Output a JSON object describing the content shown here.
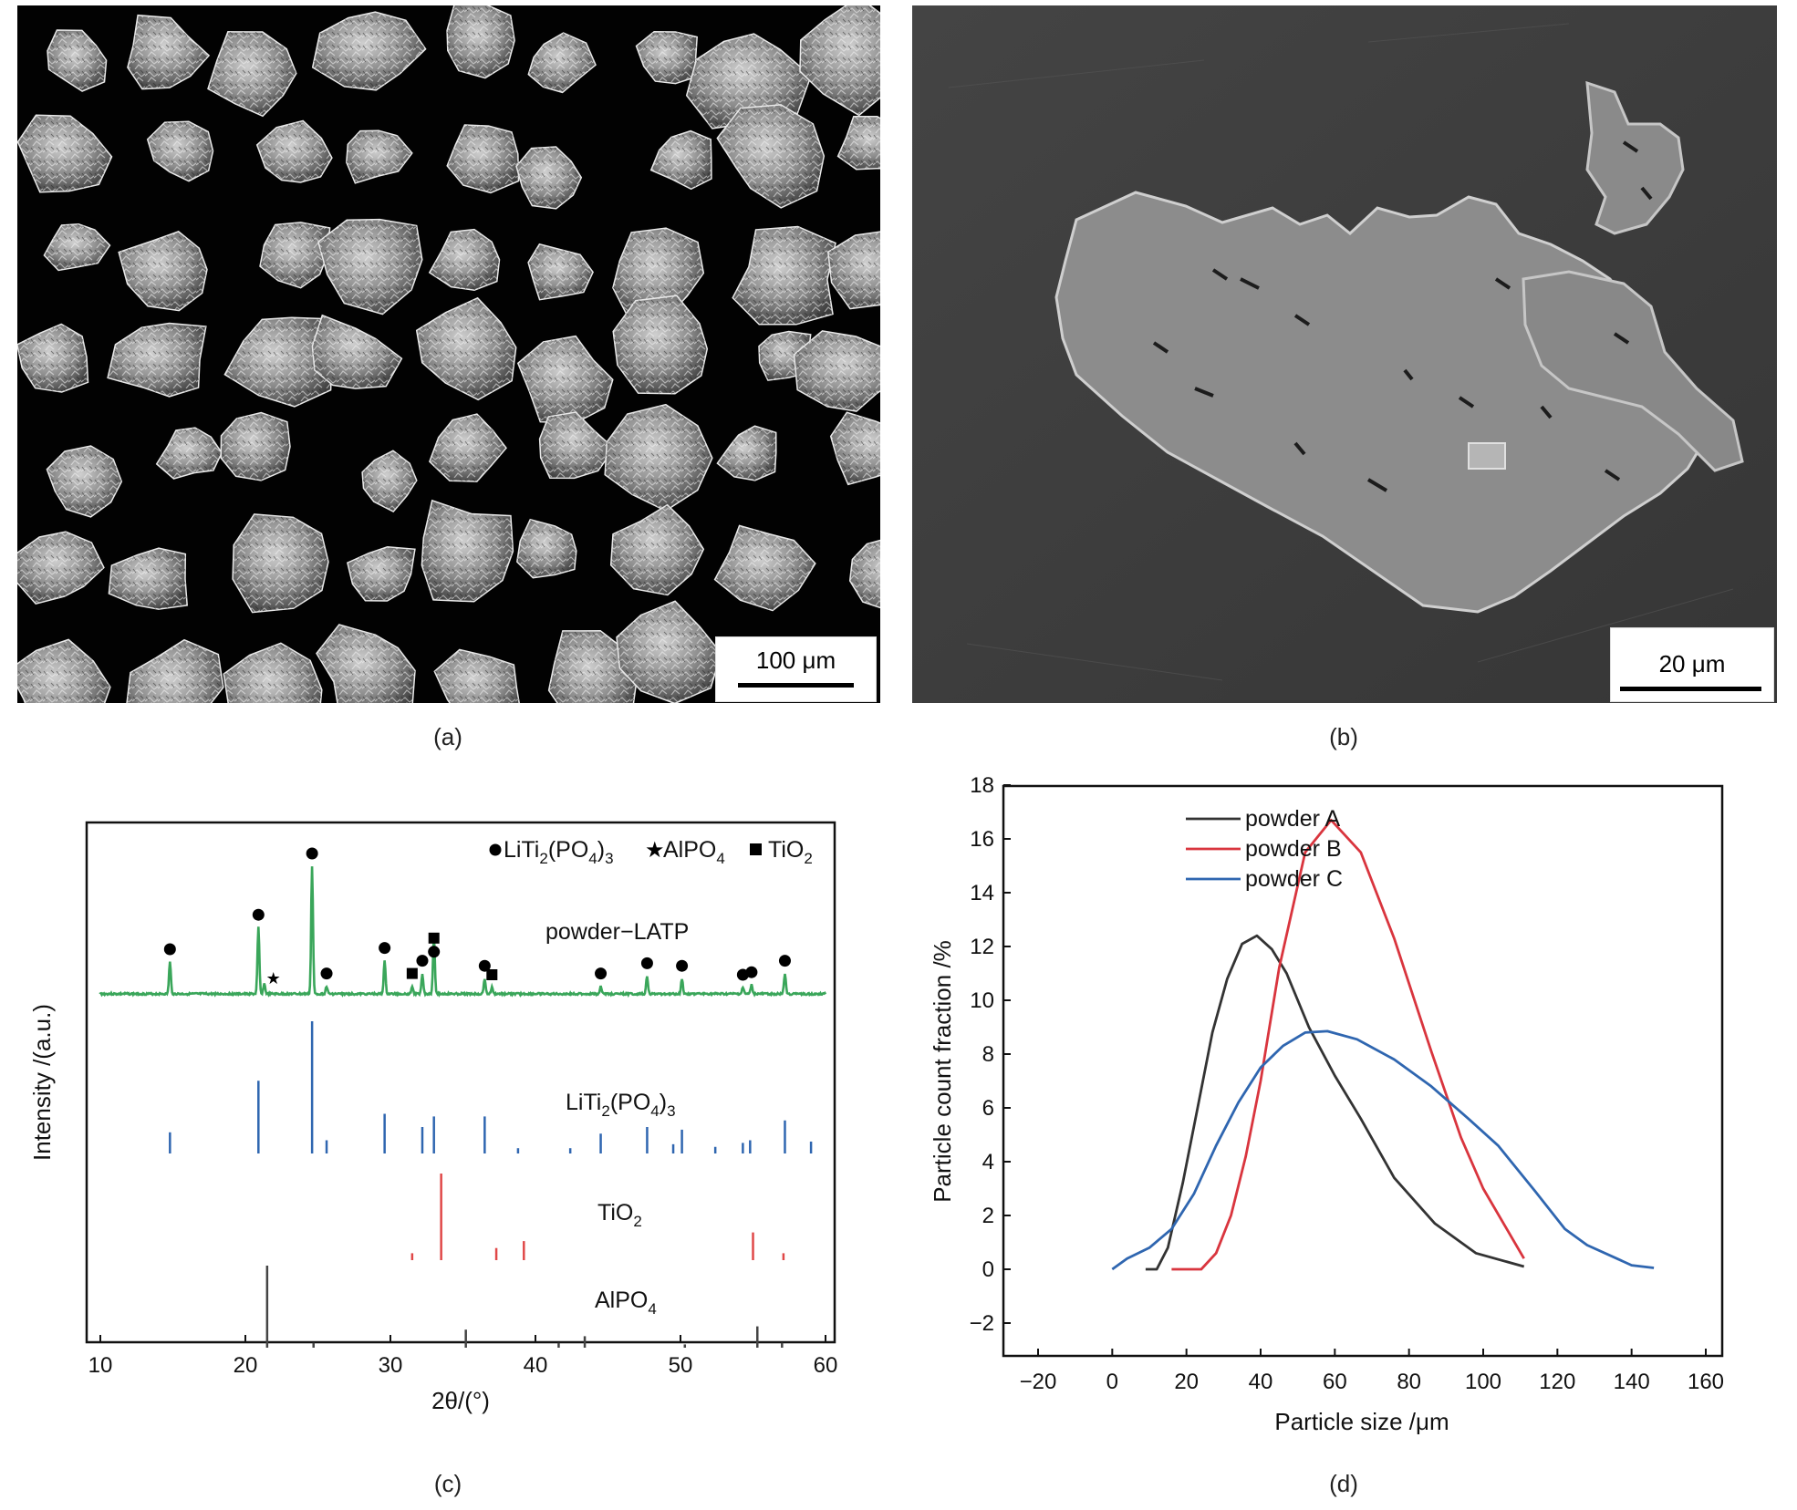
{
  "panels": {
    "a": {
      "caption": "(a)",
      "scale_label": "100 μm"
    },
    "b": {
      "caption": "(b)",
      "scale_label": "20 μm"
    },
    "c": {
      "caption": "(c)"
    },
    "d": {
      "caption": "(d)"
    }
  },
  "chart_data": [
    {
      "type": "line",
      "panel": "c",
      "xlabel": "2θ/(°)",
      "ylabel": "Intensity /(a.u.)",
      "xlim": [
        10,
        60
      ],
      "xticks": [
        10,
        20,
        30,
        40,
        50,
        60
      ],
      "legend": {
        "position": "top-right",
        "entries": [
          {
            "symbol": "circle",
            "label_main": "LiTi",
            "sub1": "2",
            "label_mid": "(PO",
            "sub2": "4",
            "label_end": ")",
            "sub3": "3"
          },
          {
            "symbol": "star",
            "label_main": "AlPO",
            "sub1": "4"
          },
          {
            "symbol": "square",
            "label_main": "TiO",
            "sub1": "2"
          }
        ]
      },
      "series": [
        {
          "name": "powder−LATP",
          "color": "#3aa65a",
          "peaks": [
            {
              "x": 14.8,
              "h": 0.25,
              "marker": "circle"
            },
            {
              "x": 20.9,
              "h": 0.52,
              "marker": "circle"
            },
            {
              "x": 21.3,
              "h": 0.08,
              "marker": "star"
            },
            {
              "x": 24.6,
              "h": 1.0,
              "marker": "circle"
            },
            {
              "x": 25.6,
              "h": 0.06,
              "marker": "circle"
            },
            {
              "x": 29.6,
              "h": 0.26,
              "marker": "circle"
            },
            {
              "x": 31.5,
              "h": 0.06,
              "marker": "square"
            },
            {
              "x": 32.2,
              "h": 0.16,
              "marker": "circle"
            },
            {
              "x": 33.0,
              "h": 0.23,
              "marker": "circle"
            },
            {
              "x": 33.0,
              "h": 0.23,
              "marker": "square"
            },
            {
              "x": 36.5,
              "h": 0.12,
              "marker": "circle"
            },
            {
              "x": 37.0,
              "h": 0.05,
              "marker": "square"
            },
            {
              "x": 44.5,
              "h": 0.06,
              "marker": "circle"
            },
            {
              "x": 47.7,
              "h": 0.14,
              "marker": "circle"
            },
            {
              "x": 50.1,
              "h": 0.12,
              "marker": "circle"
            },
            {
              "x": 54.3,
              "h": 0.05,
              "marker": "circle"
            },
            {
              "x": 54.9,
              "h": 0.07,
              "marker": "circle"
            },
            {
              "x": 57.2,
              "h": 0.16,
              "marker": "circle"
            }
          ]
        },
        {
          "name_main": "LiTi",
          "sub1": "2",
          "name_mid": "(PO",
          "sub2": "4",
          "name_end": ")",
          "sub3": "3",
          "color": "#2f66b0",
          "sticks": [
            {
              "x": 14.8,
              "h": 0.16
            },
            {
              "x": 20.9,
              "h": 0.55
            },
            {
              "x": 24.6,
              "h": 1.0
            },
            {
              "x": 25.6,
              "h": 0.1
            },
            {
              "x": 29.6,
              "h": 0.3
            },
            {
              "x": 32.2,
              "h": 0.2
            },
            {
              "x": 33.0,
              "h": 0.28
            },
            {
              "x": 36.5,
              "h": 0.28
            },
            {
              "x": 38.8,
              "h": 0.04
            },
            {
              "x": 42.4,
              "h": 0.04
            },
            {
              "x": 44.5,
              "h": 0.15
            },
            {
              "x": 47.7,
              "h": 0.2
            },
            {
              "x": 49.5,
              "h": 0.07
            },
            {
              "x": 50.1,
              "h": 0.18
            },
            {
              "x": 52.4,
              "h": 0.05
            },
            {
              "x": 54.3,
              "h": 0.08
            },
            {
              "x": 54.8,
              "h": 0.1
            },
            {
              "x": 57.2,
              "h": 0.25
            },
            {
              "x": 59.0,
              "h": 0.09
            }
          ]
        },
        {
          "name_main": "TiO",
          "sub1": "2",
          "color": "#e04848",
          "sticks": [
            {
              "x": 31.5,
              "h": 0.08
            },
            {
              "x": 33.5,
              "h": 1.0
            },
            {
              "x": 37.3,
              "h": 0.14
            },
            {
              "x": 39.2,
              "h": 0.22
            },
            {
              "x": 55.0,
              "h": 0.32
            },
            {
              "x": 57.1,
              "h": 0.08
            }
          ]
        },
        {
          "name_main": "AlPO",
          "sub1": "4",
          "color": "#444444",
          "sticks": [
            {
              "x": 21.5,
              "h": 1.0
            },
            {
              "x": 24.7,
              "h": 0.06
            },
            {
              "x": 35.2,
              "h": 0.22
            },
            {
              "x": 41.6,
              "h": 0.06
            },
            {
              "x": 43.4,
              "h": 0.14
            },
            {
              "x": 50.3,
              "h": 0.04
            },
            {
              "x": 55.3,
              "h": 0.26
            },
            {
              "x": 57.0,
              "h": 0.06
            }
          ]
        }
      ]
    },
    {
      "type": "line",
      "panel": "d",
      "xlabel": "Particle size /μm",
      "ylabel": "Particle count fraction /%",
      "xlim": [
        -20,
        160
      ],
      "ylim": [
        -2,
        19
      ],
      "xticks": [
        -20,
        0,
        20,
        40,
        60,
        80,
        100,
        120,
        140,
        160
      ],
      "yticks": [
        -2,
        0,
        2,
        4,
        6,
        8,
        10,
        12,
        14,
        16,
        18
      ],
      "legend": "top-right",
      "series": [
        {
          "name": "powder A",
          "color": "#333333",
          "points": [
            [
              9,
              0
            ],
            [
              12,
              0
            ],
            [
              15,
              0.8
            ],
            [
              19,
              3.2
            ],
            [
              23,
              6.0
            ],
            [
              27,
              8.8
            ],
            [
              31,
              10.8
            ],
            [
              35,
              12.1
            ],
            [
              39,
              12.4
            ],
            [
              43,
              11.9
            ],
            [
              47,
              11.0
            ],
            [
              53,
              9.0
            ],
            [
              60,
              7.2
            ],
            [
              67,
              5.6
            ],
            [
              76,
              3.4
            ],
            [
              87,
              1.7
            ],
            [
              98,
              0.6
            ],
            [
              111,
              0.1
            ]
          ]
        },
        {
          "name": "powder B",
          "color": "#d9353e",
          "points": [
            [
              16,
              0
            ],
            [
              24,
              0
            ],
            [
              28,
              0.6
            ],
            [
              32,
              2.0
            ],
            [
              36,
              4.2
            ],
            [
              40,
              7.0
            ],
            [
              45,
              11.2
            ],
            [
              52,
              15.5
            ],
            [
              59,
              16.7
            ],
            [
              67,
              15.5
            ],
            [
              76,
              12.3
            ],
            [
              86,
              8.1
            ],
            [
              94,
              4.9
            ],
            [
              100,
              3.0
            ],
            [
              111,
              0.4
            ]
          ]
        },
        {
          "name": "powder C",
          "color": "#2f66b0",
          "points": [
            [
              0,
              0
            ],
            [
              4,
              0.4
            ],
            [
              10,
              0.8
            ],
            [
              16,
              1.5
            ],
            [
              22,
              2.8
            ],
            [
              28,
              4.6
            ],
            [
              34,
              6.2
            ],
            [
              40,
              7.5
            ],
            [
              46,
              8.3
            ],
            [
              52,
              8.8
            ],
            [
              58,
              8.85
            ],
            [
              66,
              8.55
            ],
            [
              76,
              7.8
            ],
            [
              86,
              6.8
            ],
            [
              96,
              5.6
            ],
            [
              104,
              4.6
            ],
            [
              114,
              2.9
            ],
            [
              122,
              1.5
            ],
            [
              128,
              0.9
            ],
            [
              136,
              0.4
            ],
            [
              140,
              0.15
            ],
            [
              146,
              0.05
            ]
          ]
        }
      ]
    }
  ]
}
